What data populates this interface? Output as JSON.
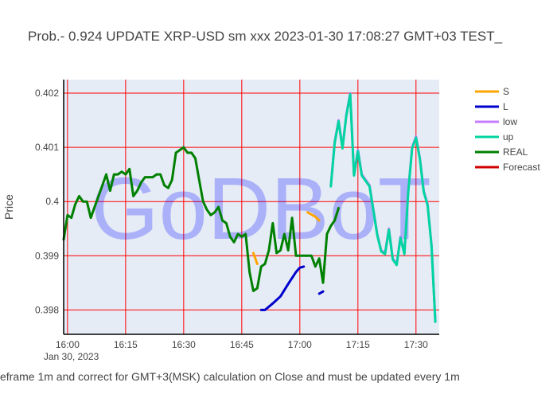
{
  "chart_data": {
    "type": "line",
    "title": "Prob.- 0.924 UPDATE XRP-USD sm xxx 2023-01-30 17:08:27 GMT+03 TEST_",
    "ylabel": "Price",
    "footer": "eframe 1m and correct for GMT+3(MSK) calculation on Close and must be updated every 1m",
    "watermark": "GoDBoT",
    "xlim": [
      "2023-01-30 15:59",
      "2023-01-30 17:36"
    ],
    "ylim": [
      0.39755,
      0.40225
    ],
    "x_ticks": [
      {
        "t": "2023-01-30 16:00",
        "label": "16:00",
        "sublabel": "Jan 30, 2023"
      },
      {
        "t": "2023-01-30 16:15",
        "label": "16:15"
      },
      {
        "t": "2023-01-30 16:30",
        "label": "16:30"
      },
      {
        "t": "2023-01-30 16:45",
        "label": "16:45"
      },
      {
        "t": "2023-01-30 17:00",
        "label": "17:00"
      },
      {
        "t": "2023-01-30 17:15",
        "label": "17:15"
      },
      {
        "t": "2023-01-30 17:30",
        "label": "17:30"
      }
    ],
    "y_ticks": [
      0.398,
      0.399,
      0.4,
      0.401,
      0.402
    ],
    "y_tick_labels": [
      "0.398",
      "0.399",
      "0.4",
      "0.401",
      "0.402"
    ],
    "grid": true,
    "legend_position": "right",
    "colors": {
      "plot_bg": "#e5ecf6",
      "grid": "#ff0000",
      "watermark": "#0000ff"
    },
    "series": [
      {
        "name": "S",
        "color": "#ffa500",
        "segments": [
          [
            [
              "2023-01-30 16:48",
              0.39905
            ],
            [
              "2023-01-30 16:49",
              0.39885
            ]
          ],
          [
            [
              "2023-01-30 17:02",
              0.3998
            ],
            [
              "2023-01-30 17:04",
              0.39972
            ],
            [
              "2023-01-30 17:05",
              0.39965
            ]
          ]
        ]
      },
      {
        "name": "L",
        "color": "#0000cd",
        "segments": [
          [
            [
              "2023-01-30 16:50",
              0.398
            ],
            [
              "2023-01-30 16:51",
              0.398
            ],
            [
              "2023-01-30 16:53",
              0.39812
            ],
            [
              "2023-01-30 16:55",
              0.39825
            ],
            [
              "2023-01-30 16:57",
              0.39848
            ],
            [
              "2023-01-30 16:59",
              0.3987
            ],
            [
              "2023-01-30 17:00",
              0.39878
            ],
            [
              "2023-01-30 17:01",
              0.3988
            ]
          ],
          [
            [
              "2023-01-30 17:05",
              0.3983
            ],
            [
              "2023-01-30 17:06",
              0.39834
            ]
          ]
        ]
      },
      {
        "name": "low",
        "color": "#c77dff",
        "segments": [
          [
            [
              "2023-01-30 17:08",
              0.4003
            ],
            [
              "2023-01-30 17:09",
              0.4011
            ],
            [
              "2023-01-30 17:10",
              0.4015
            ],
            [
              "2023-01-30 17:11",
              0.401
            ],
            [
              "2023-01-30 17:12",
              0.4016
            ],
            [
              "2023-01-30 17:13",
              0.402
            ],
            [
              "2023-01-30 17:14",
              0.4005
            ],
            [
              "2023-01-30 17:15",
              0.40095
            ],
            [
              "2023-01-30 17:16",
              0.4005
            ],
            [
              "2023-01-30 17:17",
              0.4004
            ],
            [
              "2023-01-30 17:18",
              0.4003
            ],
            [
              "2023-01-30 17:19",
              0.39985
            ],
            [
              "2023-01-30 17:20",
              0.3994
            ],
            [
              "2023-01-30 17:21",
              0.3991
            ],
            [
              "2023-01-30 17:22",
              0.39905
            ],
            [
              "2023-01-30 17:23",
              0.3995
            ],
            [
              "2023-01-30 17:24",
              0.39895
            ],
            [
              "2023-01-30 17:25",
              0.39885
            ],
            [
              "2023-01-30 17:26",
              0.39935
            ],
            [
              "2023-01-30 17:27",
              0.39905
            ],
            [
              "2023-01-30 17:28",
              0.4002
            ],
            [
              "2023-01-30 17:29",
              0.401
            ],
            [
              "2023-01-30 17:30",
              0.4012
            ],
            [
              "2023-01-30 17:31",
              0.4008
            ],
            [
              "2023-01-30 17:32",
              0.4002
            ],
            [
              "2023-01-30 17:33",
              0.39995
            ],
            [
              "2023-01-30 17:34",
              0.3992
            ],
            [
              "2023-01-30 17:35",
              0.3978
            ]
          ]
        ]
      },
      {
        "name": "up",
        "color": "#00d4a0",
        "segments": [
          [
            [
              "2023-01-30 17:08",
              0.40028
            ],
            [
              "2023-01-30 17:09",
              0.40108
            ],
            [
              "2023-01-30 17:10",
              0.40148
            ],
            [
              "2023-01-30 17:11",
              0.40098
            ],
            [
              "2023-01-30 17:12",
              0.40158
            ],
            [
              "2023-01-30 17:13",
              0.40198
            ],
            [
              "2023-01-30 17:14",
              0.40048
            ],
            [
              "2023-01-30 17:15",
              0.40093
            ],
            [
              "2023-01-30 17:16",
              0.40048
            ],
            [
              "2023-01-30 17:17",
              0.40038
            ],
            [
              "2023-01-30 17:18",
              0.40028
            ],
            [
              "2023-01-30 17:19",
              0.39983
            ],
            [
              "2023-01-30 17:20",
              0.39938
            ],
            [
              "2023-01-30 17:21",
              0.39908
            ],
            [
              "2023-01-30 17:22",
              0.39903
            ],
            [
              "2023-01-30 17:23",
              0.39948
            ],
            [
              "2023-01-30 17:24",
              0.39893
            ],
            [
              "2023-01-30 17:25",
              0.39883
            ],
            [
              "2023-01-30 17:26",
              0.39933
            ],
            [
              "2023-01-30 17:27",
              0.39903
            ],
            [
              "2023-01-30 17:28",
              0.40018
            ],
            [
              "2023-01-30 17:29",
              0.40098
            ],
            [
              "2023-01-30 17:30",
              0.40118
            ],
            [
              "2023-01-30 17:31",
              0.40078
            ],
            [
              "2023-01-30 17:32",
              0.40018
            ],
            [
              "2023-01-30 17:33",
              0.39993
            ],
            [
              "2023-01-30 17:34",
              0.39918
            ],
            [
              "2023-01-30 17:35",
              0.39778
            ]
          ]
        ]
      },
      {
        "name": "REAL",
        "color": "#008000",
        "segments": [
          [
            [
              "2023-01-30 15:59",
              0.3993
            ],
            [
              "2023-01-30 16:00",
              0.39975
            ],
            [
              "2023-01-30 16:01",
              0.3997
            ],
            [
              "2023-01-30 16:02",
              0.39995
            ],
            [
              "2023-01-30 16:03",
              0.4001
            ],
            [
              "2023-01-30 16:04",
              0.4
            ],
            [
              "2023-01-30 16:05",
              0.4
            ],
            [
              "2023-01-30 16:06",
              0.3997
            ],
            [
              "2023-01-30 16:07",
              0.3999
            ],
            [
              "2023-01-30 16:08",
              0.4001
            ],
            [
              "2023-01-30 16:09",
              0.4003
            ],
            [
              "2023-01-30 16:10",
              0.4005
            ],
            [
              "2023-01-30 16:11",
              0.4002
            ],
            [
              "2023-01-30 16:12",
              0.4005
            ],
            [
              "2023-01-30 16:13",
              0.4005
            ],
            [
              "2023-01-30 16:14",
              0.40055
            ],
            [
              "2023-01-30 16:15",
              0.4005
            ],
            [
              "2023-01-30 16:16",
              0.4006
            ],
            [
              "2023-01-30 16:17",
              0.4001
            ],
            [
              "2023-01-30 16:18",
              0.4002
            ],
            [
              "2023-01-30 16:19",
              0.40035
            ],
            [
              "2023-01-30 16:20",
              0.40045
            ],
            [
              "2023-01-30 16:21",
              0.40045
            ],
            [
              "2023-01-30 16:22",
              0.40045
            ],
            [
              "2023-01-30 16:23",
              0.4005
            ],
            [
              "2023-01-30 16:24",
              0.4005
            ],
            [
              "2023-01-30 16:25",
              0.4003
            ],
            [
              "2023-01-30 16:26",
              0.40025
            ],
            [
              "2023-01-30 16:27",
              0.4004
            ],
            [
              "2023-01-30 16:28",
              0.4009
            ],
            [
              "2023-01-30 16:29",
              0.40095
            ],
            [
              "2023-01-30 16:30",
              0.401
            ],
            [
              "2023-01-30 16:31",
              0.4009
            ],
            [
              "2023-01-30 16:32",
              0.4009
            ],
            [
              "2023-01-30 16:33",
              0.4008
            ],
            [
              "2023-01-30 16:34",
              0.4004
            ],
            [
              "2023-01-30 16:35",
              0.4
            ],
            [
              "2023-01-30 16:36",
              0.39985
            ],
            [
              "2023-01-30 16:37",
              0.39975
            ],
            [
              "2023-01-30 16:38",
              0.3998
            ],
            [
              "2023-01-30 16:39",
              0.3999
            ],
            [
              "2023-01-30 16:40",
              0.39965
            ],
            [
              "2023-01-30 16:41",
              0.3996
            ],
            [
              "2023-01-30 16:42",
              0.39935
            ],
            [
              "2023-01-30 16:43",
              0.39925
            ],
            [
              "2023-01-30 16:44",
              0.3994
            ],
            [
              "2023-01-30 16:45",
              0.39935
            ],
            [
              "2023-01-30 16:46",
              0.3994
            ],
            [
              "2023-01-30 16:47",
              0.3987
            ],
            [
              "2023-01-30 16:48",
              0.39835
            ],
            [
              "2023-01-30 16:49",
              0.3984
            ],
            [
              "2023-01-30 16:50",
              0.3988
            ],
            [
              "2023-01-30 16:51",
              0.39885
            ],
            [
              "2023-01-30 16:52",
              0.3991
            ],
            [
              "2023-01-30 16:53",
              0.3996
            ],
            [
              "2023-01-30 16:54",
              0.39905
            ],
            [
              "2023-01-30 16:55",
              0.3991
            ],
            [
              "2023-01-30 16:56",
              0.3994
            ],
            [
              "2023-01-30 16:57",
              0.3991
            ],
            [
              "2023-01-30 16:58",
              0.3997
            ],
            [
              "2023-01-30 16:59",
              0.399
            ],
            [
              "2023-01-30 17:00",
              0.399
            ],
            [
              "2023-01-30 17:01",
              0.399
            ],
            [
              "2023-01-30 17:02",
              0.399
            ],
            [
              "2023-01-30 17:03",
              0.399
            ],
            [
              "2023-01-30 17:04",
              0.3988
            ],
            [
              "2023-01-30 17:05",
              0.39895
            ],
            [
              "2023-01-30 17:06",
              0.3985
            ],
            [
              "2023-01-30 17:07",
              0.3994
            ],
            [
              "2023-01-30 17:08",
              0.39955
            ],
            [
              "2023-01-30 17:09",
              0.39965
            ],
            [
              "2023-01-30 17:10",
              0.39988
            ]
          ]
        ]
      },
      {
        "name": "Forecast",
        "color": "#d00000",
        "segments": []
      }
    ]
  }
}
